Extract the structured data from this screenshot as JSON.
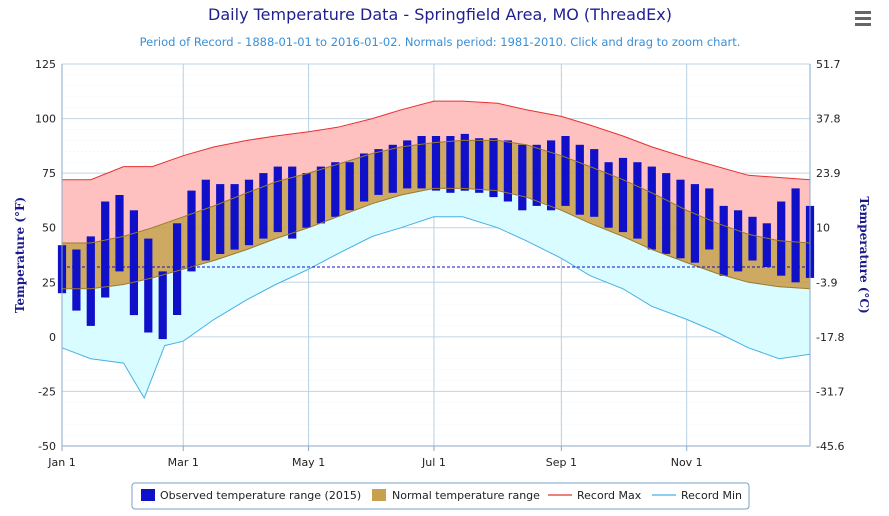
{
  "chart_data": {
    "type": "bar",
    "title": "Daily Temperature Data - Springfield Area, MO (ThreadEx)",
    "subtitle": "Period of Record - 1888-01-01 to 2016-01-02. Normals period: 1981-2010. Click and drag to zoom chart.",
    "ylabel": "Temperature (°F)",
    "ylabel_right": "Temperature (°C)",
    "ylim": [
      -50,
      125
    ],
    "ylim_right": [
      -45.6,
      51.7
    ],
    "y_ticks": [
      "125",
      "100",
      "75",
      "50",
      "25",
      "0",
      "-25",
      "-50"
    ],
    "y_ticks_right": [
      "51.7",
      "37.8",
      "23.9",
      "10",
      "-3.9",
      "-17.8",
      "-31.7",
      "-45.6"
    ],
    "x_ticks": [
      "Jan 1",
      "Mar 1",
      "May 1",
      "Jul 1",
      "Sep 1",
      "Nov 1"
    ],
    "x_tick_days": [
      1,
      60,
      121,
      182,
      244,
      305
    ],
    "days_in_year": 365,
    "freezing_line_f": 32,
    "grid": true,
    "legend_position": "bottom",
    "legend": [
      "Observed temperature range (2015)",
      "Normal temperature range",
      "Record Max",
      "Record Min"
    ],
    "colors": {
      "observed": "#1010c8",
      "normal_fill": "#c8a050",
      "normal_line": "#9a7a30",
      "record_max_line": "#e83030",
      "record_max_fill": "#ffc0c0",
      "record_min_line": "#48b0e8",
      "record_min_fill": "#d8fcff",
      "freezing": "#1010c8"
    },
    "series": [
      {
        "name": "Record Max",
        "points": [
          [
            1,
            72
          ],
          [
            15,
            72
          ],
          [
            31,
            78
          ],
          [
            45,
            78
          ],
          [
            60,
            83
          ],
          [
            75,
            87
          ],
          [
            91,
            90
          ],
          [
            105,
            92
          ],
          [
            121,
            94
          ],
          [
            135,
            96
          ],
          [
            152,
            100
          ],
          [
            166,
            104
          ],
          [
            182,
            108
          ],
          [
            196,
            108
          ],
          [
            213,
            107
          ],
          [
            227,
            104
          ],
          [
            244,
            101
          ],
          [
            258,
            97
          ],
          [
            274,
            92
          ],
          [
            288,
            87
          ],
          [
            305,
            82
          ],
          [
            320,
            78
          ],
          [
            335,
            74
          ],
          [
            350,
            73
          ],
          [
            365,
            72
          ]
        ]
      },
      {
        "name": "Normal High",
        "points": [
          [
            1,
            43
          ],
          [
            15,
            43
          ],
          [
            31,
            46
          ],
          [
            45,
            50
          ],
          [
            60,
            55
          ],
          [
            75,
            60
          ],
          [
            91,
            66
          ],
          [
            105,
            71
          ],
          [
            121,
            75
          ],
          [
            135,
            79
          ],
          [
            152,
            84
          ],
          [
            166,
            87
          ],
          [
            182,
            89
          ],
          [
            196,
            90
          ],
          [
            213,
            90
          ],
          [
            227,
            88
          ],
          [
            244,
            83
          ],
          [
            258,
            78
          ],
          [
            274,
            72
          ],
          [
            288,
            66
          ],
          [
            305,
            58
          ],
          [
            320,
            52
          ],
          [
            335,
            47
          ],
          [
            350,
            44
          ],
          [
            365,
            43
          ]
        ]
      },
      {
        "name": "Normal Low",
        "points": [
          [
            1,
            22
          ],
          [
            15,
            22
          ],
          [
            31,
            24
          ],
          [
            45,
            27
          ],
          [
            60,
            31
          ],
          [
            75,
            35
          ],
          [
            91,
            40
          ],
          [
            105,
            45
          ],
          [
            121,
            50
          ],
          [
            135,
            55
          ],
          [
            152,
            61
          ],
          [
            166,
            65
          ],
          [
            182,
            68
          ],
          [
            196,
            68
          ],
          [
            213,
            67
          ],
          [
            227,
            64
          ],
          [
            244,
            58
          ],
          [
            258,
            52
          ],
          [
            274,
            46
          ],
          [
            288,
            40
          ],
          [
            305,
            34
          ],
          [
            320,
            29
          ],
          [
            335,
            25
          ],
          [
            350,
            23
          ],
          [
            365,
            22
          ]
        ]
      },
      {
        "name": "Record Min",
        "points": [
          [
            1,
            -5
          ],
          [
            15,
            -10
          ],
          [
            31,
            -12
          ],
          [
            41,
            -28
          ],
          [
            51,
            -4
          ],
          [
            60,
            -2
          ],
          [
            75,
            8
          ],
          [
            91,
            17
          ],
          [
            105,
            24
          ],
          [
            121,
            31
          ],
          [
            135,
            38
          ],
          [
            152,
            46
          ],
          [
            166,
            50
          ],
          [
            182,
            55
          ],
          [
            196,
            55
          ],
          [
            213,
            50
          ],
          [
            227,
            44
          ],
          [
            244,
            36
          ],
          [
            258,
            28
          ],
          [
            274,
            22
          ],
          [
            288,
            14
          ],
          [
            305,
            8
          ],
          [
            320,
            2
          ],
          [
            335,
            -5
          ],
          [
            350,
            -10
          ],
          [
            365,
            -8
          ]
        ]
      },
      {
        "name": "Observed temperature range (2015)",
        "ranges": [
          [
            1,
            20,
            42
          ],
          [
            8,
            12,
            40
          ],
          [
            15,
            5,
            46
          ],
          [
            22,
            18,
            62
          ],
          [
            29,
            30,
            65
          ],
          [
            36,
            10,
            58
          ],
          [
            43,
            2,
            45
          ],
          [
            50,
            -1,
            30
          ],
          [
            57,
            10,
            52
          ],
          [
            64,
            30,
            67
          ],
          [
            71,
            35,
            72
          ],
          [
            78,
            38,
            70
          ],
          [
            85,
            40,
            70
          ],
          [
            92,
            42,
            72
          ],
          [
            99,
            45,
            75
          ],
          [
            106,
            48,
            78
          ],
          [
            113,
            45,
            78
          ],
          [
            120,
            50,
            75
          ],
          [
            127,
            52,
            78
          ],
          [
            134,
            55,
            80
          ],
          [
            141,
            58,
            80
          ],
          [
            148,
            62,
            84
          ],
          [
            155,
            65,
            86
          ],
          [
            162,
            66,
            88
          ],
          [
            169,
            68,
            90
          ],
          [
            176,
            68,
            92
          ],
          [
            183,
            67,
            92
          ],
          [
            190,
            66,
            92
          ],
          [
            197,
            67,
            93
          ],
          [
            204,
            66,
            91
          ],
          [
            211,
            64,
            91
          ],
          [
            218,
            62,
            90
          ],
          [
            225,
            58,
            88
          ],
          [
            232,
            60,
            88
          ],
          [
            239,
            58,
            90
          ],
          [
            246,
            60,
            92
          ],
          [
            253,
            56,
            88
          ],
          [
            260,
            55,
            86
          ],
          [
            267,
            50,
            80
          ],
          [
            274,
            48,
            82
          ],
          [
            281,
            45,
            80
          ],
          [
            288,
            40,
            78
          ],
          [
            295,
            38,
            75
          ],
          [
            302,
            36,
            72
          ],
          [
            309,
            34,
            70
          ],
          [
            316,
            40,
            68
          ],
          [
            323,
            28,
            60
          ],
          [
            330,
            30,
            58
          ],
          [
            337,
            35,
            55
          ],
          [
            344,
            32,
            52
          ],
          [
            351,
            28,
            62
          ],
          [
            358,
            25,
            68
          ],
          [
            365,
            27,
            60
          ]
        ]
      }
    ]
  }
}
